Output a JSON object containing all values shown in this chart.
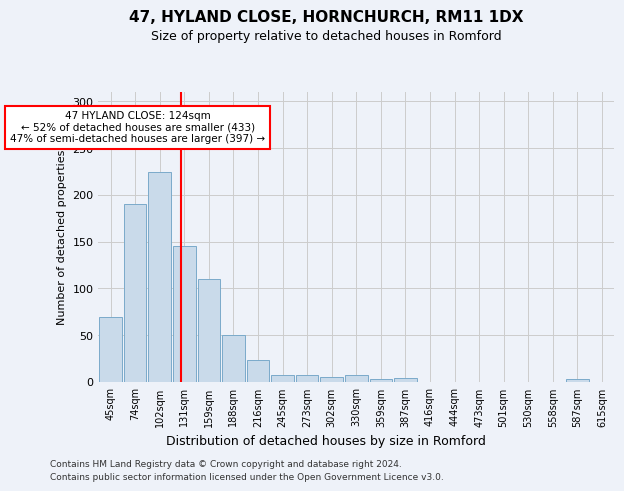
{
  "title": "47, HYLAND CLOSE, HORNCHURCH, RM11 1DX",
  "subtitle": "Size of property relative to detached houses in Romford",
  "xlabel": "Distribution of detached houses by size in Romford",
  "ylabel": "Number of detached properties",
  "bar_labels": [
    "45sqm",
    "74sqm",
    "102sqm",
    "131sqm",
    "159sqm",
    "188sqm",
    "216sqm",
    "245sqm",
    "273sqm",
    "302sqm",
    "330sqm",
    "359sqm",
    "387sqm",
    "416sqm",
    "444sqm",
    "473sqm",
    "501sqm",
    "530sqm",
    "558sqm",
    "587sqm",
    "615sqm"
  ],
  "bar_values": [
    70,
    190,
    224,
    145,
    110,
    50,
    24,
    8,
    8,
    5,
    8,
    3,
    4,
    0,
    0,
    0,
    0,
    0,
    0,
    3,
    0
  ],
  "bar_color": "#c9daea",
  "bar_edgecolor": "#7aaaca",
  "vline_x": 2.85,
  "vline_color": "red",
  "annotation_text": "47 HYLAND CLOSE: 124sqm\n← 52% of detached houses are smaller (433)\n47% of semi-detached houses are larger (397) →",
  "annotation_box_color": "white",
  "annotation_box_edgecolor": "red",
  "ylim": [
    0,
    310
  ],
  "yticks": [
    0,
    50,
    100,
    150,
    200,
    250,
    300
  ],
  "grid_color": "#cccccc",
  "bg_color": "#eef2f9",
  "footer_line1": "Contains HM Land Registry data © Crown copyright and database right 2024.",
  "footer_line2": "Contains public sector information licensed under the Open Government Licence v3.0."
}
